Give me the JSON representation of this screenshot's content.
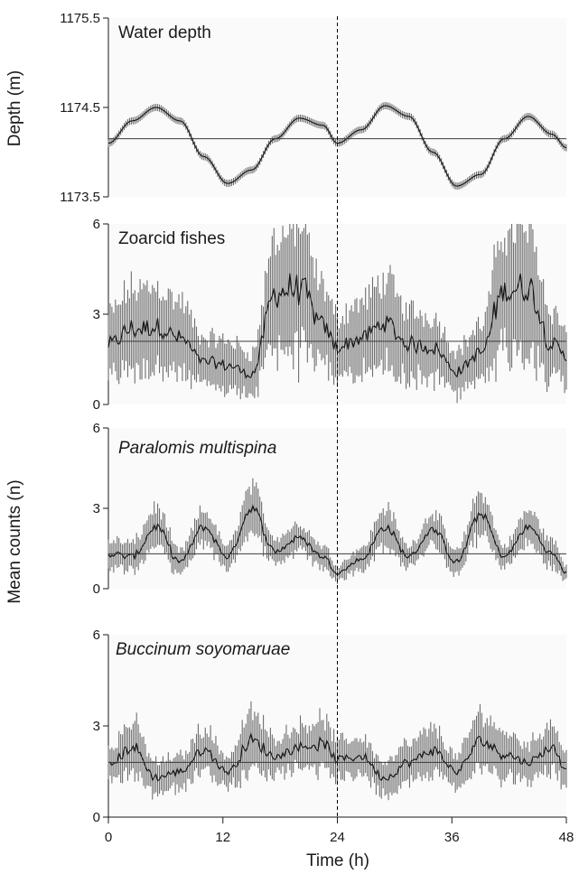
{
  "chart_data": {
    "type": "line",
    "x_axis": {
      "label": "Time (h)",
      "range": [
        0,
        48
      ],
      "ticks": [
        "0",
        "12",
        "24",
        "36",
        "48"
      ],
      "tick_values": [
        0,
        12,
        24,
        36,
        48
      ]
    },
    "reference_line_x": 24,
    "y_axis_labels": {
      "top": "Depth (m)",
      "shared": "Mean counts (n)"
    },
    "panels": [
      {
        "title": "Water depth",
        "italic": false,
        "ylim": [
          1173.5,
          1175.5
        ],
        "ticks": [
          "1175.5",
          "1174.5",
          "1173.5"
        ],
        "tick_values": [
          1175.5,
          1174.5,
          1173.5
        ],
        "mean": 1174.15,
        "band_halfwidth": 0.04,
        "x": [
          0,
          2.5,
          5,
          7.5,
          10,
          12.5,
          15,
          17.5,
          20,
          22.5,
          24,
          26.5,
          29,
          31.5,
          34,
          36.5,
          39,
          41.5,
          44,
          46.5,
          48
        ],
        "values": [
          1174.1,
          1174.35,
          1174.5,
          1174.35,
          1173.95,
          1173.65,
          1173.8,
          1174.15,
          1174.38,
          1174.3,
          1174.1,
          1174.25,
          1174.52,
          1174.4,
          1174.0,
          1173.62,
          1173.75,
          1174.15,
          1174.4,
          1174.2,
          1174.05
        ]
      },
      {
        "title": "Zoarcid fishes",
        "italic": false,
        "ylim": [
          0,
          6
        ],
        "ticks": [
          "6",
          "3",
          "0"
        ],
        "tick_values": [
          6,
          3,
          0
        ],
        "mean": 2.1,
        "x": [
          0,
          2.5,
          5,
          7.5,
          10,
          12.5,
          15,
          17.5,
          20,
          22.5,
          24,
          26.5,
          29,
          31.5,
          34,
          36.5,
          39,
          41.5,
          44,
          46.5,
          48
        ],
        "values": [
          2.0,
          2.5,
          2.6,
          2.2,
          1.4,
          1.3,
          1.0,
          3.7,
          3.9,
          2.6,
          1.9,
          2.2,
          2.7,
          2.0,
          1.9,
          1.1,
          1.7,
          3.8,
          3.9,
          2.0,
          1.6
        ],
        "errors": [
          1.0,
          1.3,
          1.3,
          1.2,
          0.8,
          0.8,
          0.7,
          1.8,
          2.0,
          1.3,
          1.0,
          1.2,
          1.4,
          1.1,
          1.0,
          0.7,
          0.9,
          1.9,
          2.0,
          1.1,
          0.9
        ]
      },
      {
        "title": "Paralomis multispina",
        "italic": true,
        "ylim": [
          0,
          6
        ],
        "ticks": [
          "6",
          "3",
          "0"
        ],
        "tick_values": [
          6,
          3,
          0
        ],
        "mean": 1.3,
        "x": [
          0,
          2.5,
          5,
          7.5,
          10,
          12.5,
          15,
          17.5,
          20,
          22.5,
          24,
          26.5,
          29,
          31.5,
          34,
          36.5,
          39,
          41.5,
          44,
          46.5,
          48
        ],
        "values": [
          1.3,
          1.2,
          2.3,
          1.0,
          2.3,
          1.2,
          3.0,
          1.4,
          1.9,
          1.2,
          0.6,
          1.1,
          2.3,
          1.2,
          2.2,
          1.0,
          2.8,
          1.2,
          2.3,
          1.3,
          0.6
        ],
        "errors": [
          0.5,
          0.5,
          0.7,
          0.4,
          0.6,
          0.4,
          0.8,
          0.5,
          0.5,
          0.4,
          0.3,
          0.4,
          0.7,
          0.4,
          0.6,
          0.4,
          0.8,
          0.4,
          0.6,
          0.5,
          0.3
        ]
      },
      {
        "title": "Buccinum soyomaruae",
        "italic": true,
        "ylim": [
          0,
          6
        ],
        "ticks": [
          "6",
          "3",
          "0"
        ],
        "tick_values": [
          6,
          3,
          0
        ],
        "mean": 1.8,
        "x": [
          0,
          2.5,
          5,
          7.5,
          10,
          12.5,
          15,
          17.5,
          20,
          22.5,
          24,
          26.5,
          29,
          31.5,
          34,
          36.5,
          39,
          41.5,
          44,
          46.5,
          48
        ],
        "values": [
          1.7,
          2.3,
          1.3,
          1.5,
          2.2,
          1.5,
          2.5,
          2.0,
          2.3,
          2.4,
          1.9,
          2.0,
          1.3,
          1.8,
          2.2,
          1.5,
          2.5,
          2.1,
          1.8,
          2.3,
          1.6
        ],
        "errors": [
          0.6,
          0.8,
          0.5,
          0.5,
          0.7,
          0.5,
          0.9,
          0.6,
          0.7,
          0.8,
          0.6,
          0.6,
          0.5,
          0.6,
          0.7,
          0.5,
          0.9,
          0.7,
          0.6,
          0.8,
          0.5
        ]
      }
    ]
  }
}
